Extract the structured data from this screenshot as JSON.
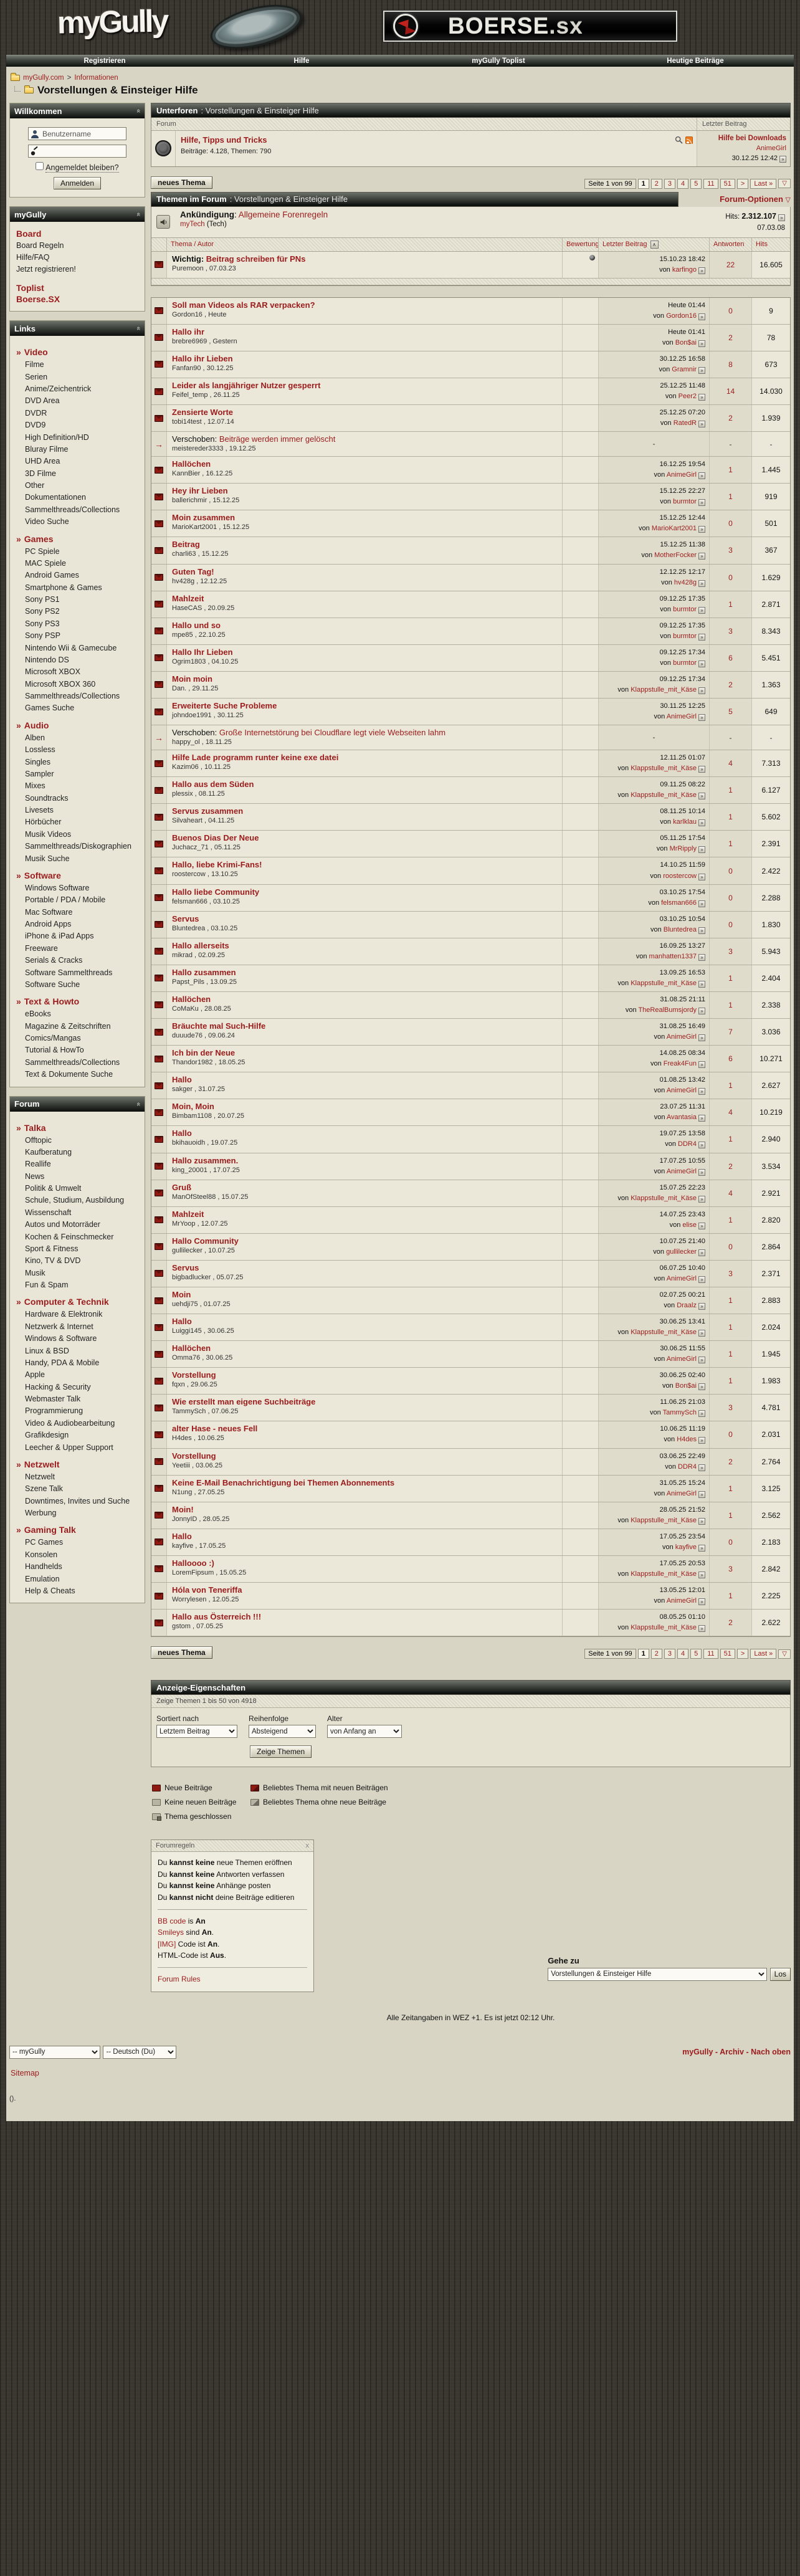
{
  "colors": {
    "accent": "#9b1c1c",
    "page_bg": "#d8d5c5",
    "bar_dark": "#3a3f39"
  },
  "header": {
    "logo": "myGully",
    "banner_main": "BOERSE",
    "banner_suffix": ".sx"
  },
  "nav": {
    "items": [
      "Registrieren",
      "Hilfe",
      "myGully Toplist",
      "Heutige Beiträge"
    ]
  },
  "breadcrumb": {
    "root": "myGully.com",
    "sep": ">",
    "section": "Informationen",
    "page_title": "Vorstellungen & Einsteiger Hilfe"
  },
  "sidebar": {
    "welcome": {
      "title": "Willkommen",
      "username": "Benutzername",
      "remember_label": "Angemeldet bleiben?",
      "login_button": "Anmelden"
    },
    "board_panel": {
      "title": "myGully",
      "items": [
        {
          "label": "Board",
          "style": "head"
        },
        {
          "label": "Board Regeln"
        },
        {
          "label": "Hilfe/FAQ"
        },
        {
          "label": "Jetzt registrieren!"
        },
        {
          "label": "Toplist",
          "style": "head",
          "gap": true
        },
        {
          "label": "Boerse.SX",
          "style": "head"
        }
      ]
    },
    "links_panel": {
      "title": "Links",
      "sections": [
        {
          "heading": "Video",
          "items": [
            "Filme",
            "Serien",
            "Anime/Zeichentrick",
            "DVD Area",
            "DVDR",
            "DVD9",
            "High Definition/HD",
            "Bluray Filme",
            "UHD Area",
            "3D Filme",
            "Other",
            "Dokumentationen",
            "Sammelthreads/Collections",
            "Video Suche"
          ]
        },
        {
          "heading": "Games",
          "items": [
            "PC Spiele",
            "MAC Spiele",
            "Android Games",
            "Smartphone & Games",
            "Sony PS1",
            "Sony PS2",
            "Sony PS3",
            "Sony PSP",
            "Nintendo Wii & Gamecube",
            "Nintendo DS",
            "Microsoft XBOX",
            "Microsoft XBOX 360",
            "Sammelthreads/Collections",
            "Games Suche"
          ]
        },
        {
          "heading": "Audio",
          "items": [
            "Alben",
            "Lossless",
            "Singles",
            "Sampler",
            "Mixes",
            "Soundtracks",
            "Livesets",
            "Hörbücher",
            "Musik Videos",
            "Sammelthreads/Diskographien",
            "Musik Suche"
          ]
        },
        {
          "heading": "Software",
          "items": [
            "Windows Software",
            "Portable / PDA / Mobile",
            "Mac Software",
            "Android Apps",
            "iPhone & iPad Apps",
            "Freeware",
            "Serials & Cracks",
            "Software Sammelthreads",
            "Software Suche"
          ]
        },
        {
          "heading": "Text & Howto",
          "items": [
            "eBooks",
            "Magazine & Zeitschriften",
            "Comics/Mangas",
            "Tutorial & HowTo",
            "Sammelthreads/Collections",
            "Text & Dokumente Suche"
          ]
        }
      ]
    },
    "forum_panel": {
      "title": "Forum",
      "sections": [
        {
          "heading": "Talka",
          "items": [
            "Offtopic",
            "Kaufberatung",
            "Reallife",
            "News",
            "Politik & Umwelt",
            "Schule, Studium, Ausbildung",
            "Wissenschaft",
            "Autos und Motorräder",
            "Kochen & Feinschmecker",
            "Sport & Fitness",
            "Kino, TV & DVD",
            "Musik",
            "Fun & Spam"
          ]
        },
        {
          "heading": "Computer & Technik",
          "items": [
            "Hardware & Elektronik",
            "Netzwerk & Internet",
            "Windows & Software",
            "Linux & BSD",
            "Handy, PDA & Mobile",
            "Apple",
            "Hacking & Security",
            "Webmaster Talk",
            "Programmierung",
            "Video & Audiobearbeitung",
            "Grafikdesign",
            "Leecher & Upper Support"
          ]
        },
        {
          "heading": "Netzwelt",
          "items": [
            "Netzwelt",
            "Szene Talk",
            "Downtimes, Invites und Suche",
            "Werbung"
          ]
        },
        {
          "heading": "Gaming Talk",
          "items": [
            "PC Games",
            "Konsolen",
            "Handhelds",
            "Emulation",
            "Help & Cheats"
          ]
        }
      ]
    }
  },
  "subforums": {
    "bar_title": "Unterforen",
    "bar_context": ": Vorstellungen & Einsteiger Hilfe",
    "col_forum": "Forum",
    "col_last": "Letzter Beitrag",
    "row": {
      "title": "Hilfe, Tipps und Tricks",
      "stats": "Beiträge: 4.128, Themen: 790",
      "last_title": "Hilfe bei Downloads",
      "von": "von",
      "last_user": "AnimeGirl",
      "last_date": "30.12.25 12:42"
    }
  },
  "pagination": {
    "label": "Seite 1 von 99",
    "current": "1",
    "pages": [
      "2",
      "3",
      "4",
      "5",
      "11",
      "51"
    ],
    "next": ">",
    "last": "Last »",
    "tri": "▽"
  },
  "threads_section": {
    "new_thread": "neues Thema",
    "bar_title": "Themen im Forum",
    "bar_context": ": Vorstellungen & Einsteiger Hilfe",
    "options": "Forum-Optionen",
    "announcement": {
      "prefix": "Ankündigung",
      "title": "Allgemeine Forenregeln",
      "author": "myTech",
      "author_note": "(Tech)",
      "hits_label": "Hits:",
      "hits": "2.312.107",
      "date": "07.03.08"
    },
    "columns": {
      "thema": "Thema / Autor",
      "bewertung": "Bewertung",
      "letzter": "Letzter Beitrag",
      "antworten": "Antworten",
      "hits": "Hits"
    },
    "sticky_prefix": "Wichtig:",
    "moved_prefix": "Verschoben:",
    "von": "von",
    "sticky": {
      "title": "Beitrag schreiben für PNs",
      "author": "Puremoon , 07.03.23",
      "last_date": "15.10.23 18:42",
      "last_user": "karfingo",
      "replies": "22",
      "hits": "16.605"
    },
    "threads": [
      {
        "title": "Soll man Videos als RAR verpacken?",
        "author": "Gordon16 , Heute",
        "last_date": "Heute 01:44",
        "last_user": "Gordon16",
        "replies": "0",
        "hits": "9"
      },
      {
        "title": "Hallo ihr",
        "author": "brebre6969 , Gestern",
        "last_date": "Heute 01:41",
        "last_user": "Bon$ai",
        "replies": "2",
        "hits": "78"
      },
      {
        "title": "Hallo ihr Lieben",
        "author": "Fanfan90 , 30.12.25",
        "last_date": "30.12.25 16:58",
        "last_user": "Gramnir",
        "replies": "8",
        "hits": "673"
      },
      {
        "title": "Leider als langjähriger Nutzer gesperrt",
        "author": "Feifel_temp , 26.11.25",
        "last_date": "25.12.25 11:48",
        "last_user": "Peer2",
        "replies": "14",
        "hits": "14.030"
      },
      {
        "title": "Zensierte Worte",
        "author": "tobi14test , 12.07.14",
        "last_date": "25.12.25 07:20",
        "last_user": "RatedR",
        "replies": "2",
        "hits": "1.939"
      },
      {
        "title": "Beiträge werden immer gelöscht",
        "author": "meistereder3333 , 19.12.25",
        "moved": true
      },
      {
        "title": "Hallöchen",
        "author": "KannBier , 16.12.25",
        "last_date": "16.12.25 19:54",
        "last_user": "AnimeGirl",
        "replies": "1",
        "hits": "1.445"
      },
      {
        "title": "Hey ihr Lieben",
        "author": "ballerichmir , 15.12.25",
        "last_date": "15.12.25 22:27",
        "last_user": "burmtor",
        "replies": "1",
        "hits": "919"
      },
      {
        "title": "Moin zusammen",
        "author": "MarioKart2001 , 15.12.25",
        "last_date": "15.12.25 12:44",
        "last_user": "MarioKart2001",
        "replies": "0",
        "hits": "501"
      },
      {
        "title": "Beitrag",
        "author": "charli63 , 15.12.25",
        "last_date": "15.12.25 11:38",
        "last_user": "MotherFocker",
        "replies": "3",
        "hits": "367"
      },
      {
        "title": "Guten Tag!",
        "author": "hv428g , 12.12.25",
        "last_date": "12.12.25 12:17",
        "last_user": "hv428g",
        "replies": "0",
        "hits": "1.629"
      },
      {
        "title": "Mahlzeit",
        "author": "HaseCAS , 20.09.25",
        "last_date": "09.12.25 17:35",
        "last_user": "burmtor",
        "replies": "1",
        "hits": "2.871"
      },
      {
        "title": "Hallo und so",
        "author": "mpe85 , 22.10.25",
        "last_date": "09.12.25 17:35",
        "last_user": "burmtor",
        "replies": "3",
        "hits": "8.343"
      },
      {
        "title": "Hallo Ihr Lieben",
        "author": "Ogrim1803 , 04.10.25",
        "last_date": "09.12.25 17:34",
        "last_user": "burmtor",
        "replies": "6",
        "hits": "5.451"
      },
      {
        "title": "Moin moin",
        "author": "Dan. , 29.11.25",
        "last_date": "09.12.25 17:34",
        "last_user": "Klappstulle_mit_Käse",
        "replies": "2",
        "hits": "1.363"
      },
      {
        "title": "Erweiterte Suche Probleme",
        "author": "johndoe1991 , 30.11.25",
        "last_date": "30.11.25 12:25",
        "last_user": "AnimeGirl",
        "replies": "5",
        "hits": "649"
      },
      {
        "title": "Große Internetstörung bei Cloudflare legt viele Webseiten lahm",
        "author": "happy_ol , 18.11.25",
        "moved": true
      },
      {
        "title": "Hilfe Lade programm runter keine exe datei",
        "author": "Kazim06 , 10.11.25",
        "last_date": "12.11.25 01:07",
        "last_user": "Klappstulle_mit_Käse",
        "replies": "4",
        "hits": "7.313"
      },
      {
        "title": "Hallo aus dem Süden",
        "author": "plessix , 08.11.25",
        "last_date": "09.11.25 08:22",
        "last_user": "Klappstulle_mit_Käse",
        "replies": "1",
        "hits": "6.127"
      },
      {
        "title": "Servus zusammen",
        "author": "Silvaheart , 04.11.25",
        "last_date": "08.11.25 10:14",
        "last_user": "karlklau",
        "replies": "1",
        "hits": "5.602"
      },
      {
        "title": "Buenos Dias Der Neue",
        "author": "Juchacz_71 , 05.11.25",
        "last_date": "05.11.25 17:54",
        "last_user": "MrRipply",
        "replies": "1",
        "hits": "2.391"
      },
      {
        "title": "Hallo, liebe Krimi-Fans!",
        "author": "roostercow , 13.10.25",
        "last_date": "14.10.25 11:59",
        "last_user": "roostercow",
        "replies": "0",
        "hits": "2.422"
      },
      {
        "title": "Hallo liebe Community",
        "author": "felsman666 , 03.10.25",
        "last_date": "03.10.25 17:54",
        "last_user": "felsman666",
        "replies": "0",
        "hits": "2.288"
      },
      {
        "title": "Servus",
        "author": "Bluntedrea , 03.10.25",
        "last_date": "03.10.25 10:54",
        "last_user": "Bluntedrea",
        "replies": "0",
        "hits": "1.830"
      },
      {
        "title": "Hallo allerseits",
        "author": "mikrad , 02.09.25",
        "last_date": "16.09.25 13:27",
        "last_user": "manhatten1337",
        "replies": "3",
        "hits": "5.943"
      },
      {
        "title": "Hallo zusammen",
        "author": "Papst_Pils , 13.09.25",
        "last_date": "13.09.25 16:53",
        "last_user": "Klappstulle_mit_Käse",
        "replies": "1",
        "hits": "2.404"
      },
      {
        "title": "Hallöchen",
        "author": "CoMaKu , 28.08.25",
        "last_date": "31.08.25 21:11",
        "last_user": "TheRealBumsjordy",
        "replies": "1",
        "hits": "2.338"
      },
      {
        "title": "Bräuchte mal Such-Hilfe",
        "author": "duuude76 , 09.06.24",
        "last_date": "31.08.25 16:49",
        "last_user": "AnimeGirl",
        "replies": "7",
        "hits": "3.036"
      },
      {
        "title": "Ich bin der Neue",
        "author": "Thandor1982 , 18.05.25",
        "last_date": "14.08.25 08:34",
        "last_user": "Freak4Fun",
        "replies": "6",
        "hits": "10.271"
      },
      {
        "title": "Hallo",
        "author": "sakger , 31.07.25",
        "last_date": "01.08.25 13:42",
        "last_user": "AnimeGirl",
        "replies": "1",
        "hits": "2.627"
      },
      {
        "title": "Moin, Moin",
        "author": "Bimbam1108 , 20.07.25",
        "last_date": "23.07.25 11:31",
        "last_user": "Avantasia",
        "replies": "4",
        "hits": "10.219"
      },
      {
        "title": "Hallo",
        "author": "bkihauoidh , 19.07.25",
        "last_date": "19.07.25 13:58",
        "last_user": "DDR4",
        "replies": "1",
        "hits": "2.940"
      },
      {
        "title": "Hallo zusammen.",
        "author": "king_20001 , 17.07.25",
        "last_date": "17.07.25 10:55",
        "last_user": "AnimeGirl",
        "replies": "2",
        "hits": "3.534"
      },
      {
        "title": "Gruß",
        "author": "ManOfSteel88 , 15.07.25",
        "last_date": "15.07.25 22:23",
        "last_user": "Klappstulle_mit_Käse",
        "replies": "4",
        "hits": "2.921"
      },
      {
        "title": "Mahlzeit",
        "author": "MrYoop , 12.07.25",
        "last_date": "14.07.25 23:43",
        "last_user": "elise",
        "replies": "1",
        "hits": "2.820"
      },
      {
        "title": "Hallo Community",
        "author": "gullilecker , 10.07.25",
        "last_date": "10.07.25 21:40",
        "last_user": "gullilecker",
        "replies": "0",
        "hits": "2.864"
      },
      {
        "title": "Servus",
        "author": "bigbadlucker , 05.07.25",
        "last_date": "06.07.25 10:40",
        "last_user": "AnimeGirl",
        "replies": "3",
        "hits": "2.371"
      },
      {
        "title": "Moin",
        "author": "uehdji75 , 01.07.25",
        "last_date": "02.07.25 00:21",
        "last_user": "Draalz",
        "replies": "1",
        "hits": "2.883"
      },
      {
        "title": "Hallo",
        "author": "Luiggi145 , 30.06.25",
        "last_date": "30.06.25 13:41",
        "last_user": "Klappstulle_mit_Käse",
        "replies": "1",
        "hits": "2.024"
      },
      {
        "title": "Hallöchen",
        "author": "Omma76 , 30.06.25",
        "last_date": "30.06.25 11:55",
        "last_user": "AnimeGirl",
        "replies": "1",
        "hits": "1.945"
      },
      {
        "title": "Vorstellung",
        "author": "fqxn , 29.06.25",
        "last_date": "30.06.25 02:40",
        "last_user": "Bon$ai",
        "replies": "1",
        "hits": "1.983"
      },
      {
        "title": "Wie erstellt man eigene Suchbeiträge",
        "author": "TammySch , 07.06.25",
        "last_date": "11.06.25 21:03",
        "last_user": "TammySch",
        "replies": "3",
        "hits": "4.781"
      },
      {
        "title": "alter Hase - neues Fell",
        "author": "H4des , 10.06.25",
        "last_date": "10.06.25 11:19",
        "last_user": "H4des",
        "replies": "0",
        "hits": "2.031"
      },
      {
        "title": "Vorstellung",
        "author": "Yeetiii , 03.06.25",
        "last_date": "03.06.25 22:49",
        "last_user": "DDR4",
        "replies": "2",
        "hits": "2.764"
      },
      {
        "title": "Keine E-Mail Benachrichtigung bei Themen Abonnements",
        "author": "N1ung , 27.05.25",
        "last_date": "31.05.25 15:24",
        "last_user": "AnimeGirl",
        "replies": "1",
        "hits": "3.125"
      },
      {
        "title": "Moin!",
        "author": "JonnyID , 28.05.25",
        "last_date": "28.05.25 21:52",
        "last_user": "Klappstulle_mit_Käse",
        "replies": "1",
        "hits": "2.562"
      },
      {
        "title": "Hallo",
        "author": "kayfive , 17.05.25",
        "last_date": "17.05.25 23:54",
        "last_user": "kayfive",
        "replies": "0",
        "hits": "2.183"
      },
      {
        "title": "Halloooo :)",
        "author": "LoremFipsum , 15.05.25",
        "last_date": "17.05.25 20:53",
        "last_user": "Klappstulle_mit_Käse",
        "replies": "3",
        "hits": "2.842"
      },
      {
        "title": "Hóla von Teneriffa",
        "author": "Worrylesen , 12.05.25",
        "last_date": "13.05.25 12:01",
        "last_user": "AnimeGirl",
        "replies": "1",
        "hits": "2.225"
      },
      {
        "title": "Hallo aus Österreich !!!",
        "author": "gstom , 07.05.25",
        "last_date": "08.05.25 01:10",
        "last_user": "Klappstulle_mit_Käse",
        "replies": "2",
        "hits": "2.622"
      }
    ]
  },
  "display_options": {
    "bar_title": "Anzeige-Eigenschaften",
    "showing": "Zeige Themen 1 bis 50 von 4918",
    "sort_label": "Sortiert nach",
    "sort_value": "Letztem Beitrag",
    "order_label": "Reihenfolge",
    "order_value": "Absteigend",
    "age_label": "Alter",
    "age_value": "von Anfang an",
    "submit": "Zeige Themen"
  },
  "legend": {
    "col1": [
      {
        "icon": "new",
        "label": "Neue Beiträge"
      },
      {
        "icon": "nonew",
        "label": "Keine neuen Beiträge"
      },
      {
        "icon": "closed",
        "label": "Thema geschlossen"
      }
    ],
    "col2": [
      {
        "icon": "hot_new",
        "label": "Beliebtes Thema mit neuen Beiträgen"
      },
      {
        "icon": "hot_nonew",
        "label": "Beliebtes Thema ohne neue Beiträge"
      }
    ]
  },
  "rules": {
    "title": "Forumregeln",
    "close": "x",
    "perm_lines": [
      [
        "Du ",
        "kannst keine",
        " neue Themen eröffnen"
      ],
      [
        "Du ",
        "kannst keine",
        " Antworten verfassen"
      ],
      [
        "Du ",
        "kannst keine",
        " Anhänge posten"
      ],
      [
        "Du ",
        "kannst nicht",
        " deine Beiträge editieren"
      ]
    ],
    "code_lines": [
      [
        {
          "t": "BB code",
          "link": true
        },
        {
          "t": " is "
        },
        {
          "t": "An",
          "b": true
        }
      ],
      [
        {
          "t": "Smileys",
          "link": true
        },
        {
          "t": " sind "
        },
        {
          "t": "An",
          "b": true
        },
        {
          "t": "."
        }
      ],
      [
        {
          "t": "[IMG]",
          "link": true
        },
        {
          "t": " Code ist "
        },
        {
          "t": "An",
          "b": true
        },
        {
          "t": "."
        }
      ],
      [
        {
          "t": "HTML-Code ist "
        },
        {
          "t": "Aus",
          "b": true
        },
        {
          "t": "."
        }
      ]
    ],
    "footer_link": "Forum Rules"
  },
  "goto": {
    "label": "Gehe zu",
    "value": "Vorstellungen & Einsteiger Hilfe",
    "button": "Los"
  },
  "time_note": "Alle Zeitangaben in WEZ +1. Es ist jetzt 02:12 Uhr.",
  "footer": {
    "style_select": "-- myGully",
    "lang_select": "-- Deutsch (Du)",
    "links": [
      "myGully",
      "Archiv",
      "Nach oben"
    ],
    "link_sep": " - ",
    "sitemap": "Sitemap",
    "tiny": "()."
  }
}
